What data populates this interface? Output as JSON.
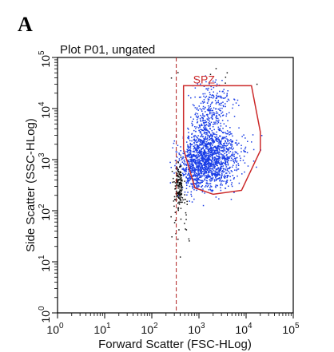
{
  "figure": {
    "panel_label": "A"
  },
  "chart_data": {
    "type": "scatter",
    "title": "Plot P01, ungated",
    "xlabel": "Forward Scatter (FSC-HLog)",
    "ylabel": "Side Scatter (SSC-HLog)",
    "x_scale": "log",
    "y_scale": "log",
    "xlim": [
      1,
      100000
    ],
    "ylim": [
      1,
      100000
    ],
    "x_ticks": [
      {
        "value": 1,
        "base": "10",
        "exp": "0"
      },
      {
        "value": 10,
        "base": "10",
        "exp": "1"
      },
      {
        "value": 100,
        "base": "10",
        "exp": "2"
      },
      {
        "value": 1000,
        "base": "10",
        "exp": "3"
      },
      {
        "value": 10000,
        "base": "10",
        "exp": "4"
      },
      {
        "value": 100000,
        "base": "10",
        "exp": "5"
      }
    ],
    "y_ticks": [
      {
        "value": 1,
        "base": "10",
        "exp": "0"
      },
      {
        "value": 10,
        "base": "10",
        "exp": "1"
      },
      {
        "value": 100,
        "base": "10",
        "exp": "2"
      },
      {
        "value": 1000,
        "base": "10",
        "exp": "3"
      },
      {
        "value": 10000,
        "base": "10",
        "exp": "4"
      },
      {
        "value": 100000,
        "base": "10",
        "exp": "5"
      }
    ],
    "threshold_x": 330,
    "gate": {
      "name": "SPZ",
      "color": "#cc2a2a",
      "polygon": [
        [
          470,
          28000
        ],
        [
          13000,
          28000
        ],
        [
          20000,
          3500
        ],
        [
          20000,
          1500
        ],
        [
          8000,
          250
        ],
        [
          2000,
          210
        ],
        [
          820,
          280
        ],
        [
          470,
          1600
        ],
        [
          470,
          28000
        ]
      ]
    },
    "series": [
      {
        "color": "#1a3ee6",
        "clusters": [
          {
            "cx": 1400,
            "cy": 900,
            "sx": 0.26,
            "sy": 0.26,
            "n": 900
          },
          {
            "cx": 1500,
            "cy": 3500,
            "sx": 0.18,
            "sy": 0.42,
            "n": 420
          },
          {
            "cx": 3500,
            "cy": 1200,
            "sx": 0.25,
            "sy": 0.28,
            "n": 320
          },
          {
            "cx": 700,
            "cy": 700,
            "sx": 0.14,
            "sy": 0.3,
            "n": 180
          },
          {
            "cx": 2500,
            "cy": 12000,
            "sx": 0.22,
            "sy": 0.22,
            "n": 90
          }
        ]
      },
      {
        "color": "#111111",
        "clusters": [
          {
            "cx": 370,
            "cy": 300,
            "sx": 0.05,
            "sy": 0.22,
            "n": 160
          },
          {
            "cx": 450,
            "cy": 80,
            "sx": 0.1,
            "sy": 0.25,
            "n": 30
          },
          {
            "cx": 3000,
            "cy": 50000,
            "sx": 0.35,
            "sy": 0.1,
            "n": 8
          }
        ]
      }
    ]
  }
}
